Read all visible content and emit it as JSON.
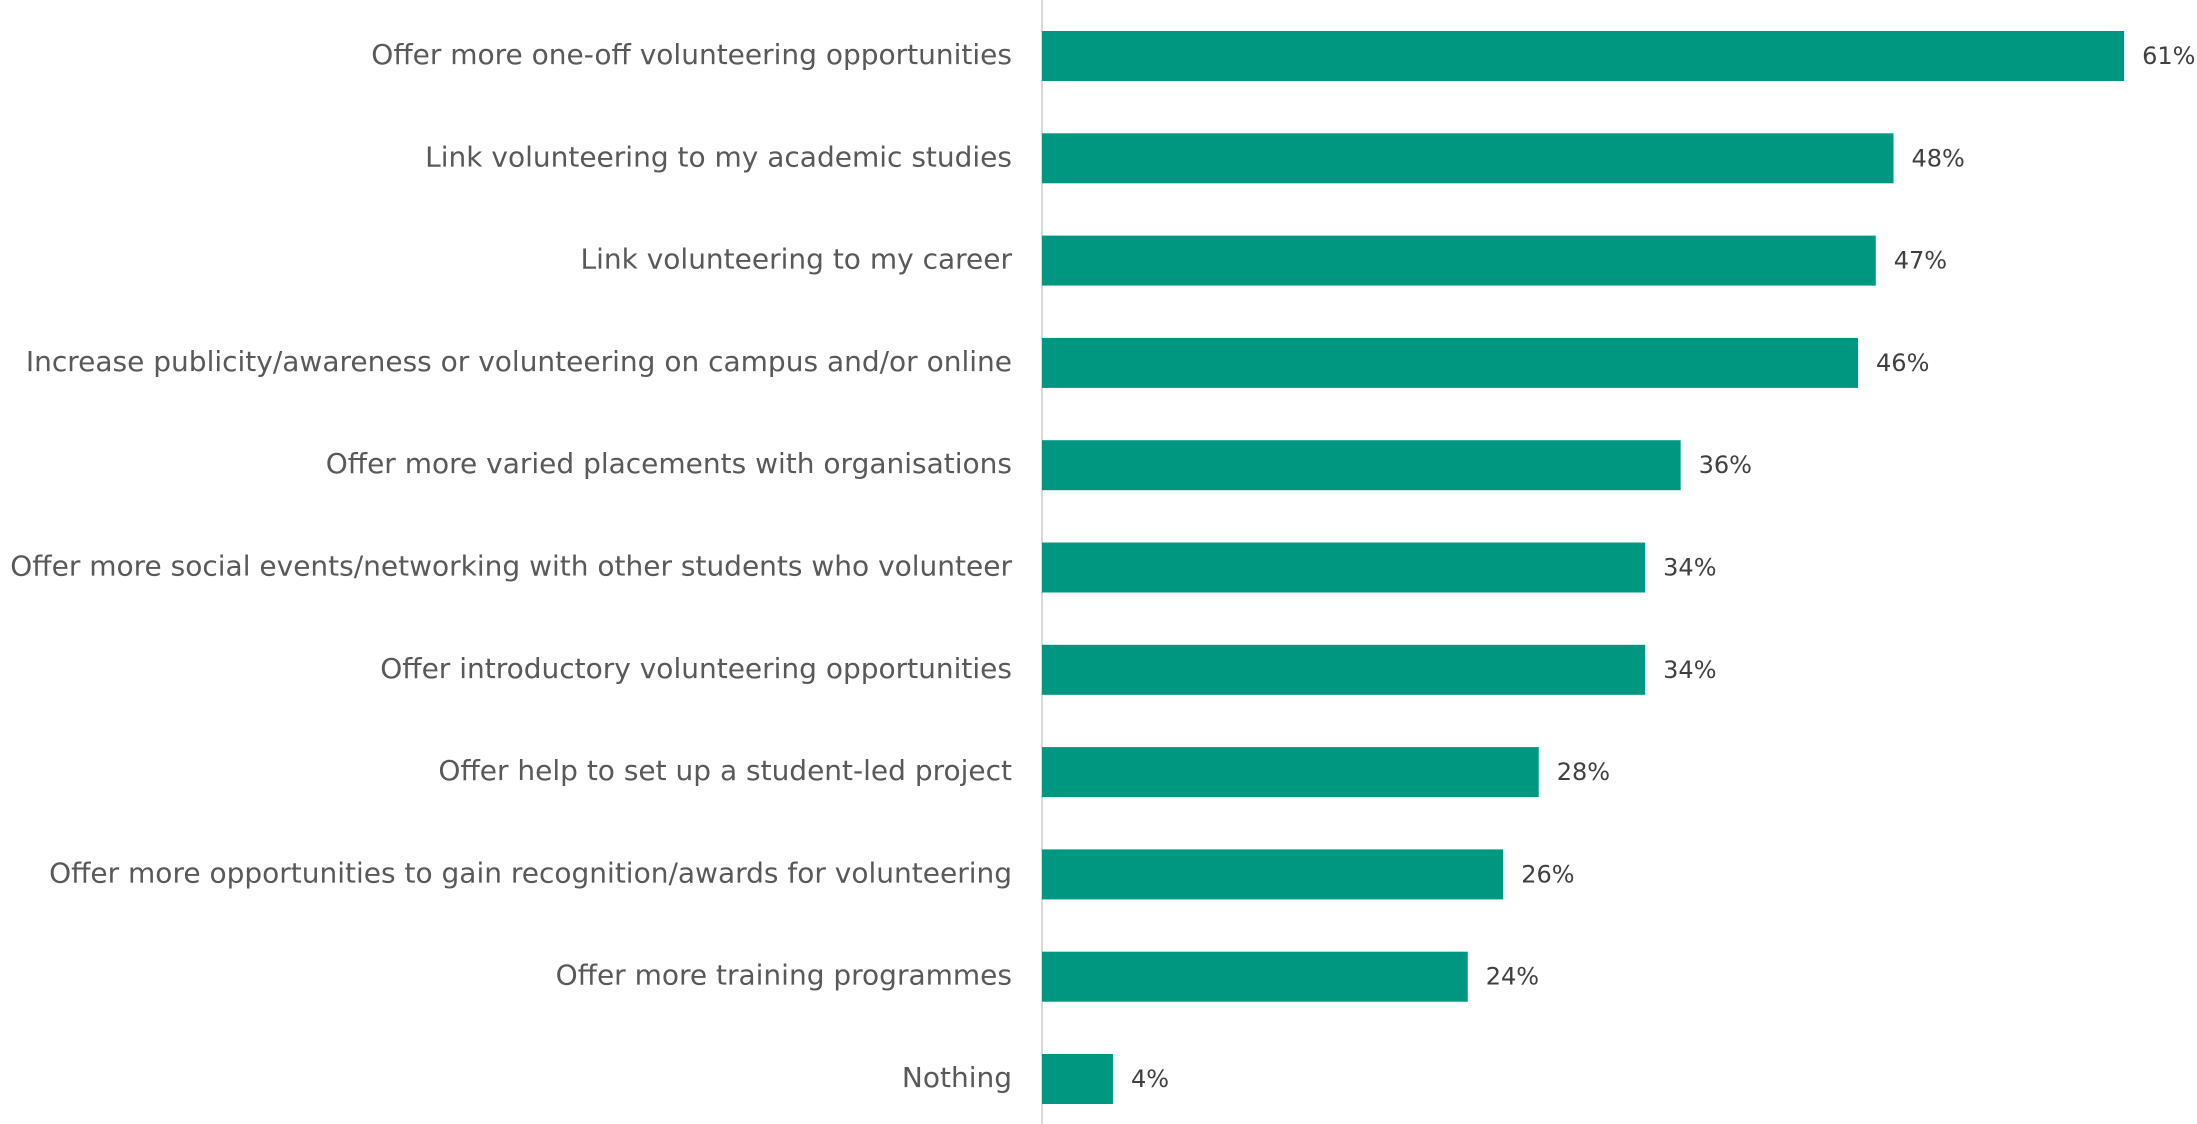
{
  "chart_data": {
    "type": "bar",
    "orientation": "horizontal",
    "categories": [
      "Offer more one-off volunteering opportunities",
      "Link volunteering to my academic studies",
      "Link volunteering to my career",
      "Increase publicity/awareness or volunteering on campus and/or online",
      "Offer more varied placements with organisations",
      "Offer more social events/networking with other students who volunteer",
      "Offer introductory volunteering opportunities",
      "Offer help to set up a student-led project",
      "Offer more opportunities to gain recognition/awards for volunteering",
      "Offer more training programmes",
      "Nothing"
    ],
    "values": [
      61,
      48,
      47,
      46,
      36,
      34,
      34,
      28,
      26,
      24,
      4
    ],
    "value_labels": [
      "61%",
      "48%",
      "47%",
      "46%",
      "36%",
      "34%",
      "34%",
      "28%",
      "26%",
      "24%",
      "4%"
    ],
    "color": "#009781"
  }
}
